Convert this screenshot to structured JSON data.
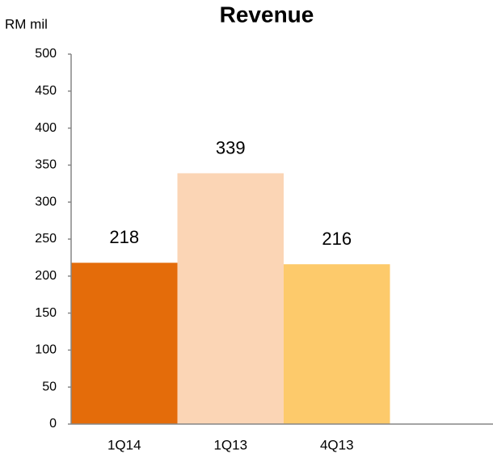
{
  "chart_data": {
    "type": "bar",
    "title": "Revenue",
    "y_label": "RM mil",
    "categories": [
      "1Q14",
      "1Q13",
      "4Q13"
    ],
    "values": [
      218,
      339,
      216
    ],
    "colors": [
      "#e46c0a",
      "#fbd5b5",
      "#fdca6b"
    ],
    "ylim": [
      0,
      500
    ],
    "yticks": [
      0,
      50,
      100,
      150,
      200,
      250,
      300,
      350,
      400,
      450,
      500
    ],
    "grid": false
  }
}
